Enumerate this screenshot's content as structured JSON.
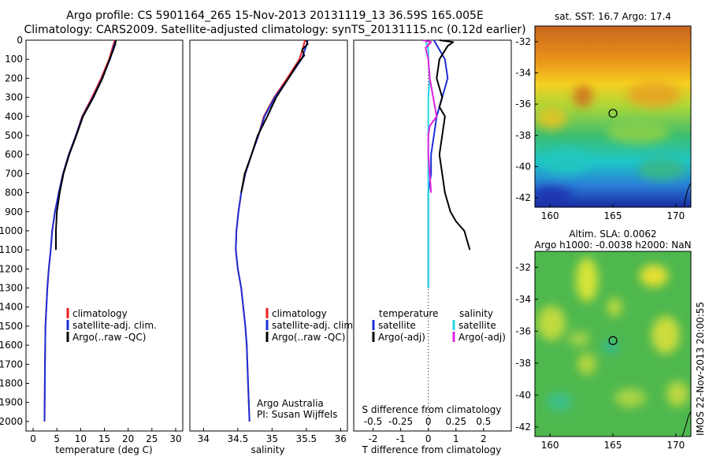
{
  "header": {
    "line1": "Argo profile: CS 5901164_265 15-Nov-2013 20131119_13 36.59S 165.005E",
    "line2": "Climatology: CARS2009. Satellite-adjusted climatology: synTS_20131115.nc (0.12d earlier)"
  },
  "footer_stamp": "IMOS 22-Nov-2013 20:00:55",
  "colors": {
    "climatology": "#e8201e",
    "satellite": "#1a2fd6",
    "argo": "#000000",
    "sat_salinity": "#22d8e6",
    "argo_salinity": "#e020e0"
  },
  "chart_data": [
    {
      "type": "line",
      "panel": "temperature",
      "xlabel": "temperature (deg C)",
      "ylim": [
        2050,
        0
      ],
      "xlim": [
        -1.5,
        31.5
      ],
      "xticks": [
        0,
        5,
        10,
        15,
        20,
        25,
        30
      ],
      "yticks": [
        0,
        100,
        200,
        300,
        400,
        500,
        600,
        700,
        800,
        900,
        1000,
        1100,
        1200,
        1300,
        1400,
        1500,
        1600,
        1700,
        1800,
        1900,
        2000
      ],
      "legend": [
        "climatology",
        "satellite-adj. clim.",
        "Argo(..raw -QC)"
      ],
      "series": [
        {
          "name": "climatology",
          "color": "climatology",
          "x": [
            17.2,
            16.8,
            16.0,
            14.3,
            12.4,
            10.3,
            9.0,
            7.5,
            6.3,
            5.4,
            4.6,
            4.0,
            3.7,
            3.3,
            3.0,
            2.8,
            2.6,
            2.5,
            2.4
          ],
          "y": [
            0,
            30,
            100,
            200,
            300,
            400,
            500,
            600,
            700,
            800,
            900,
            1000,
            1100,
            1200,
            1300,
            1400,
            1500,
            1700,
            2000
          ]
        },
        {
          "name": "satellite-adj. clim.",
          "color": "satellite",
          "x": [
            17.4,
            17.0,
            16.2,
            14.5,
            12.6,
            10.4,
            9.0,
            7.5,
            6.3,
            5.4,
            4.6,
            4.0,
            3.7,
            3.3,
            3.0,
            2.8,
            2.6,
            2.5,
            2.4
          ],
          "y": [
            0,
            30,
            100,
            200,
            300,
            400,
            500,
            600,
            700,
            800,
            900,
            1000,
            1100,
            1200,
            1300,
            1400,
            1500,
            1700,
            2000
          ]
        },
        {
          "name": "Argo(..raw -QC)",
          "color": "argo",
          "x": [
            17.4,
            17.3,
            16.9,
            16.1,
            14.6,
            12.7,
            10.5,
            9.1,
            7.6,
            6.4,
            5.6,
            5.0,
            4.8,
            4.8
          ],
          "y": [
            0,
            20,
            50,
            100,
            200,
            300,
            400,
            500,
            600,
            700,
            800,
            900,
            1000,
            1100
          ]
        }
      ]
    },
    {
      "type": "line",
      "panel": "salinity",
      "xlabel": "salinity",
      "ylim": [
        2050,
        0
      ],
      "xlim": [
        33.8,
        36.1
      ],
      "xticks": [
        34,
        34.5,
        35,
        35.5,
        36
      ],
      "legend": [
        "climatology",
        "satellite-adj. clim.",
        "Argo(..raw -QC)"
      ],
      "annotation": [
        "Argo Australia",
        "PI: Susan Wijffels"
      ],
      "series": [
        {
          "name": "climatology",
          "color": "climatology",
          "x": [
            35.48,
            35.46,
            35.4,
            35.22,
            35.03,
            34.88,
            34.8,
            34.7,
            34.61,
            34.55,
            34.51,
            34.48,
            34.47,
            34.5,
            34.55,
            34.58,
            34.61,
            34.63,
            34.65,
            34.67
          ],
          "y": [
            0,
            30,
            100,
            200,
            300,
            400,
            500,
            600,
            700,
            800,
            900,
            1000,
            1100,
            1200,
            1300,
            1400,
            1500,
            1600,
            1800,
            2000
          ]
        },
        {
          "name": "satellite-adj. clim.",
          "color": "satellite",
          "x": [
            35.52,
            35.5,
            35.43,
            35.24,
            35.04,
            34.89,
            34.8,
            34.7,
            34.61,
            34.55,
            34.51,
            34.48,
            34.47,
            34.5,
            34.55,
            34.58,
            34.61,
            34.63,
            34.65,
            34.67
          ],
          "y": [
            0,
            30,
            100,
            200,
            300,
            400,
            500,
            600,
            700,
            800,
            900,
            1000,
            1100,
            1200,
            1300,
            1400,
            1500,
            1600,
            1800,
            2000
          ]
        },
        {
          "name": "Argo(..raw -QC)",
          "color": "argo",
          "x": [
            35.5,
            35.52,
            35.44,
            35.47,
            35.38,
            35.24,
            35.06,
            34.93,
            34.79,
            34.7,
            34.6,
            34.55
          ],
          "y": [
            0,
            20,
            50,
            80,
            120,
            200,
            300,
            400,
            500,
            600,
            700,
            800
          ]
        }
      ]
    },
    {
      "type": "line",
      "panel": "difference",
      "xlabel": "T difference from climatology",
      "x2label": "S difference from climatology",
      "ylim": [
        2050,
        0
      ],
      "xlim": [
        -2.7,
        3.0
      ],
      "xticks": [
        -2,
        -1,
        0,
        1,
        2
      ],
      "x2ticks": [
        -0.5,
        -0.25,
        0,
        0.25,
        0.5
      ],
      "legend_left_title": "temperature",
      "legend_right_title": "salinity",
      "legend": [
        "satellite",
        "Argo(-adj)",
        "satellite",
        "Argo(-adj)"
      ],
      "series": [
        {
          "name": "satellite",
          "color": "satellite",
          "x": [
            0.2,
            0.4,
            0.6,
            0.7,
            0.5,
            0.3,
            0.2,
            0.1,
            0.1,
            0.0,
            0.0,
            0.0,
            0.0,
            0.0,
            0.0
          ],
          "y": [
            0,
            50,
            100,
            200,
            300,
            400,
            500,
            600,
            700,
            800,
            900,
            1000,
            1100,
            1200,
            1300
          ]
        },
        {
          "name": "Argo(-adj)",
          "color": "argo",
          "x": [
            0.4,
            0.9,
            0.7,
            0.4,
            0.3,
            0.5,
            0.4,
            0.6,
            0.5,
            0.4,
            0.5,
            0.6,
            0.8,
            1.0,
            1.3,
            1.5
          ],
          "y": [
            0,
            10,
            30,
            100,
            200,
            300,
            350,
            400,
            500,
            600,
            700,
            800,
            900,
            950,
            1000,
            1100
          ]
        },
        {
          "name": "satellite",
          "color": "sat_salinity",
          "x": [
            -0.1,
            0.0,
            0.0,
            0.05,
            0.0,
            0.0,
            0.0,
            0.0,
            0.0,
            0.0,
            0.0,
            0.0,
            0.0,
            0.0,
            0.0
          ],
          "y": [
            0,
            50,
            100,
            200,
            300,
            400,
            500,
            600,
            700,
            800,
            900,
            1000,
            1100,
            1200,
            1300
          ]
        },
        {
          "name": "Argo(-adj)",
          "color": "argo_salinity",
          "x": [
            -0.2,
            0.1,
            -0.1,
            0.0,
            0.05,
            0.3,
            0.05,
            0.0,
            0.0,
            0.1
          ],
          "y": [
            0,
            10,
            40,
            100,
            200,
            400,
            450,
            500,
            600,
            800
          ]
        }
      ]
    },
    {
      "type": "heatmap",
      "panel": "map-sst",
      "title": "sat. SST: 16.7 Argo: 17.4",
      "xlim": [
        158.8,
        171.2
      ],
      "ylim": [
        -42.6,
        -31.0
      ],
      "xticks": [
        160,
        165,
        170
      ],
      "yticks": [
        -32,
        -34,
        -36,
        -38,
        -40,
        -42
      ],
      "marker": {
        "lon": 165.005,
        "lat": -36.59
      }
    },
    {
      "type": "heatmap",
      "panel": "map-sla",
      "title": "Altim. SLA: 0.0062",
      "subtitle": "Argo h1000: -0.0038 h2000: NaN",
      "xlim": [
        158.8,
        171.2
      ],
      "ylim": [
        -42.6,
        -31.0
      ],
      "xticks": [
        160,
        165,
        170
      ],
      "yticks": [
        -32,
        -34,
        -36,
        -38,
        -40,
        -42
      ],
      "marker": {
        "lon": 165.005,
        "lat": -36.59
      }
    }
  ]
}
